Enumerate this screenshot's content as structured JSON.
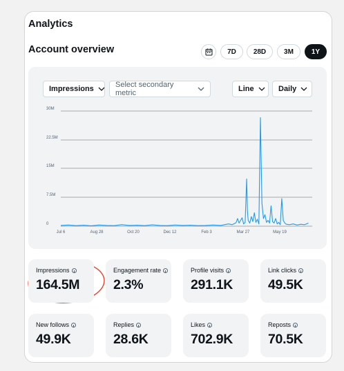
{
  "header": {
    "title": "Analytics",
    "subtitle": "Account overview"
  },
  "range": {
    "options": [
      "7D",
      "28D",
      "3M",
      "1Y"
    ],
    "selected": "1Y"
  },
  "controls": {
    "primary_metric": "Impressions",
    "secondary_metric_placeholder": "Select secondary metric",
    "chart_type": "Line",
    "interval": "Daily"
  },
  "colors": {
    "series": "#1d9bf0",
    "annotation": "#e8402b",
    "active_button": "#0f1419"
  },
  "icons": {
    "calendar": "calendar-icon",
    "chevron": "chevron-down-icon",
    "info": "info-icon"
  },
  "chart_data": {
    "type": "line",
    "y_ticks": [
      "30M",
      "22.5M",
      "15M",
      "7.5M",
      "0"
    ],
    "x_ticks": [
      "Jul 6",
      "Aug 28",
      "Oct 20",
      "Dec 12",
      "Feb 3",
      "Mar 27",
      "May 19"
    ],
    "ylim": [
      0,
      30000000
    ],
    "grid": true,
    "series": [
      {
        "values": [
          [
            0,
            200000
          ],
          [
            10,
            300000
          ],
          [
            20,
            150000
          ],
          [
            30,
            250000
          ],
          [
            40,
            100000
          ],
          [
            50,
            300000
          ],
          [
            60,
            200000
          ],
          [
            70,
            150000
          ],
          [
            80,
            400000
          ],
          [
            90,
            200000
          ],
          [
            100,
            250000
          ],
          [
            110,
            150000
          ],
          [
            120,
            350000
          ],
          [
            130,
            200000
          ],
          [
            140,
            150000
          ],
          [
            150,
            300000
          ],
          [
            160,
            200000
          ],
          [
            170,
            250000
          ],
          [
            180,
            150000
          ],
          [
            190,
            200000
          ],
          [
            200,
            300000
          ],
          [
            210,
            200000
          ],
          [
            220,
            600000
          ],
          [
            225,
            400000
          ],
          [
            230,
            900000
          ],
          [
            232,
            2000000
          ],
          [
            234,
            800000
          ],
          [
            236,
            1500000
          ],
          [
            238,
            2200000
          ],
          [
            240,
            600000
          ],
          [
            242,
            1000000
          ],
          [
            244,
            12300000
          ],
          [
            245,
            4000000
          ],
          [
            246,
            1500000
          ],
          [
            248,
            800000
          ],
          [
            250,
            2500000
          ],
          [
            252,
            1200000
          ],
          [
            254,
            3500000
          ],
          [
            256,
            1000000
          ],
          [
            258,
            1800000
          ],
          [
            260,
            600000
          ],
          [
            262,
            28300000
          ],
          [
            264,
            6000000
          ],
          [
            266,
            2000000
          ],
          [
            268,
            3000000
          ],
          [
            270,
            1000000
          ],
          [
            272,
            1500000
          ],
          [
            274,
            800000
          ],
          [
            276,
            5300000
          ],
          [
            278,
            1200000
          ],
          [
            280,
            800000
          ],
          [
            282,
            2000000
          ],
          [
            284,
            600000
          ],
          [
            286,
            1000000
          ],
          [
            288,
            400000
          ],
          [
            290,
            7200000
          ],
          [
            292,
            1500000
          ],
          [
            294,
            800000
          ],
          [
            296,
            500000
          ],
          [
            300,
            400000
          ],
          [
            305,
            600000
          ],
          [
            310,
            300000
          ],
          [
            315,
            500000
          ],
          [
            320,
            400000
          ],
          [
            325,
            800000
          ]
        ]
      }
    ]
  },
  "stats": [
    {
      "label": "Impressions",
      "value": "164.5M"
    },
    {
      "label": "Engagement rate",
      "value": "2.3%"
    },
    {
      "label": "Profile visits",
      "value": "291.1K"
    },
    {
      "label": "Link clicks",
      "value": "49.5K"
    },
    {
      "label": "New follows",
      "value": "49.9K"
    },
    {
      "label": "Replies",
      "value": "28.6K"
    },
    {
      "label": "Likes",
      "value": "702.9K"
    },
    {
      "label": "Reposts",
      "value": "70.5K"
    }
  ]
}
